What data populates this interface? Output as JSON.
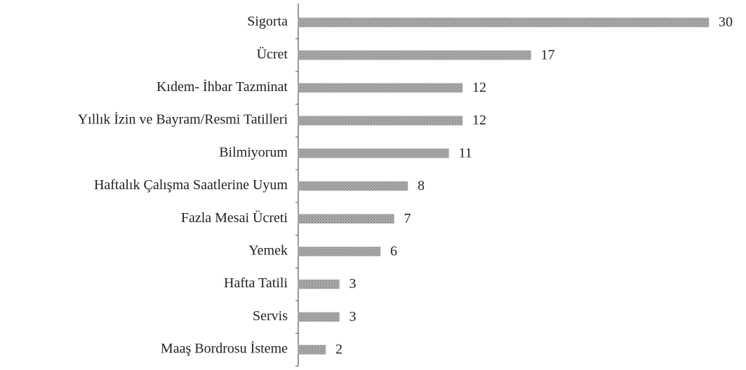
{
  "chart_data": {
    "type": "bar",
    "orientation": "horizontal",
    "categories": [
      "Sigorta",
      "Ücret",
      "Kıdem- İhbar Tazminat",
      "Yıllık İzin ve Bayram/Resmi Tatilleri",
      "Bilmiyorum",
      "Haftalık Çalışma Saatlerine Uyum",
      "Fazla Mesai Ücreti",
      "Yemek",
      "Hafta Tatili",
      "Servis",
      "Maaş Bordrosu İsteme"
    ],
    "values": [
      30,
      17,
      12,
      12,
      11,
      8,
      7,
      6,
      3,
      3,
      2
    ],
    "color": "#a6a6a6"
  }
}
